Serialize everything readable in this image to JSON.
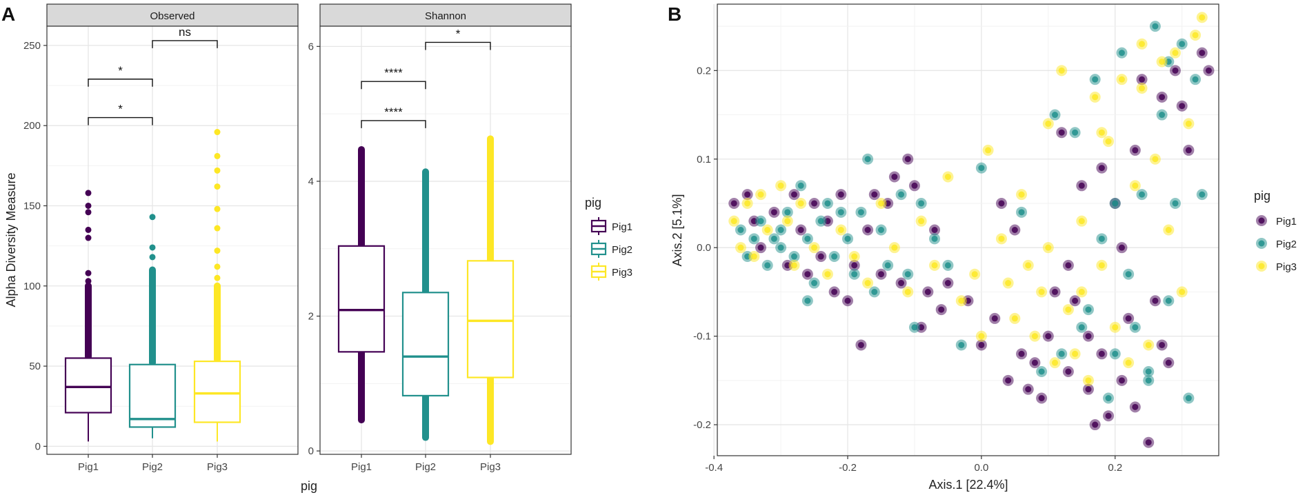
{
  "panel_a_label": "A",
  "panel_b_label": "B",
  "legend_title": "pig",
  "colors": {
    "Pig1": "#440154",
    "Pig2": "#21908C",
    "Pig3": "#FDE725"
  },
  "chart_data": [
    {
      "type": "box",
      "title": "Observed",
      "ylabel": "Alpha Diversity Measure",
      "xlabel": "pig",
      "categories": [
        "Pig1",
        "Pig2",
        "Pig3"
      ],
      "ylim": [
        -5,
        262
      ],
      "yticks": [
        0,
        50,
        100,
        150,
        200,
        250
      ],
      "boxes": [
        {
          "group": "Pig1",
          "q1": 21,
          "median": 37,
          "q3": 55,
          "whisker_low": 3,
          "whisker_high": 55,
          "outliers_dense": [
            56,
            100
          ],
          "outliers_sparse": [
            103,
            108,
            130,
            135,
            146,
            150,
            158
          ]
        },
        {
          "group": "Pig2",
          "q1": 12,
          "median": 17,
          "q3": 51,
          "whisker_low": 5,
          "whisker_high": 51,
          "outliers_dense": [
            52,
            110
          ],
          "outliers_sparse": [
            118,
            124,
            143
          ]
        },
        {
          "group": "Pig3",
          "q1": 15,
          "median": 33,
          "q3": 53,
          "whisker_low": 3,
          "whisker_high": 53,
          "outliers_dense": [
            54,
            100
          ],
          "outliers_sparse": [
            105,
            112,
            122,
            136,
            148,
            162,
            172,
            181,
            196
          ]
        }
      ],
      "comparisons": [
        {
          "from": "Pig1",
          "to": "Pig2",
          "y": 205,
          "label": "*"
        },
        {
          "from": "Pig1",
          "to": "Pig2",
          "y": 229,
          "label": "*"
        },
        {
          "from": "Pig2",
          "to": "Pig3",
          "y": 253,
          "label": "ns"
        }
      ]
    },
    {
      "type": "box",
      "title": "Shannon",
      "categories": [
        "Pig1",
        "Pig2",
        "Pig3"
      ],
      "ylim": [
        -0.05,
        6.3
      ],
      "yticks": [
        0,
        2,
        4,
        6
      ],
      "boxes": [
        {
          "group": "Pig1",
          "q1": 1.47,
          "median": 2.09,
          "q3": 3.04,
          "whisker_low": 0.46,
          "whisker_high": 4.47,
          "outliers_dense": [
            0.46,
            4.47
          ],
          "outliers_sparse": []
        },
        {
          "group": "Pig2",
          "q1": 0.82,
          "median": 1.4,
          "q3": 2.35,
          "whisker_low": 0.2,
          "whisker_high": 4.14,
          "outliers_dense": [
            0.2,
            4.14
          ],
          "outliers_sparse": []
        },
        {
          "group": "Pig3",
          "q1": 1.09,
          "median": 1.93,
          "q3": 2.82,
          "whisker_low": 0.14,
          "whisker_high": 4.63,
          "outliers_dense": [
            0.14,
            4.63
          ],
          "outliers_sparse": []
        }
      ],
      "comparisons": [
        {
          "from": "Pig1",
          "to": "Pig2",
          "y": 4.9,
          "label": "****"
        },
        {
          "from": "Pig1",
          "to": "Pig2",
          "y": 5.48,
          "label": "****"
        },
        {
          "from": "Pig2",
          "to": "Pig3",
          "y": 6.06,
          "label": "*"
        }
      ]
    },
    {
      "type": "scatter",
      "title": "",
      "xlabel": "Axis.1   [22.4%]",
      "ylabel": "Axis.2   [5.1%]",
      "xlim": [
        -0.395,
        0.355
      ],
      "ylim": [
        -0.235,
        0.275
      ],
      "xticks": [
        -0.4,
        -0.2,
        0.0,
        0.2
      ],
      "xtick_labels": [
        "-0.4",
        "-0.2",
        "0.0",
        "0.2"
      ],
      "yticks": [
        -0.2,
        -0.1,
        0.0,
        0.1,
        0.2
      ],
      "ytick_labels": [
        "-0.2",
        "-0.1",
        "0.0",
        "0.1",
        "0.2"
      ],
      "series": [
        {
          "name": "Pig1",
          "points": [
            [
              -0.37,
              0.05
            ],
            [
              -0.35,
              0.06
            ],
            [
              -0.34,
              0.03
            ],
            [
              -0.33,
              0.0
            ],
            [
              -0.31,
              0.04
            ],
            [
              -0.29,
              -0.02
            ],
            [
              -0.28,
              0.06
            ],
            [
              -0.27,
              0.02
            ],
            [
              -0.26,
              -0.03
            ],
            [
              -0.25,
              0.05
            ],
            [
              -0.24,
              -0.01
            ],
            [
              -0.23,
              0.03
            ],
            [
              -0.22,
              -0.05
            ],
            [
              -0.21,
              0.06
            ],
            [
              -0.2,
              -0.06
            ],
            [
              -0.19,
              -0.02
            ],
            [
              -0.18,
              -0.11
            ],
            [
              -0.17,
              0.02
            ],
            [
              -0.16,
              0.06
            ],
            [
              -0.15,
              -0.03
            ],
            [
              -0.14,
              0.05
            ],
            [
              -0.13,
              0.08
            ],
            [
              -0.12,
              -0.04
            ],
            [
              -0.11,
              0.1
            ],
            [
              -0.1,
              0.07
            ],
            [
              -0.09,
              -0.09
            ],
            [
              -0.08,
              -0.05
            ],
            [
              -0.07,
              0.02
            ],
            [
              -0.06,
              -0.07
            ],
            [
              -0.05,
              -0.04
            ],
            [
              -0.02,
              -0.06
            ],
            [
              0.0,
              -0.11
            ],
            [
              0.02,
              -0.08
            ],
            [
              0.03,
              0.05
            ],
            [
              0.04,
              -0.15
            ],
            [
              0.05,
              0.02
            ],
            [
              0.06,
              -0.12
            ],
            [
              0.07,
              -0.16
            ],
            [
              0.08,
              -0.13
            ],
            [
              0.09,
              -0.17
            ],
            [
              0.1,
              -0.1
            ],
            [
              0.11,
              -0.05
            ],
            [
              0.12,
              0.13
            ],
            [
              0.13,
              -0.14
            ],
            [
              0.14,
              -0.06
            ],
            [
              0.15,
              0.07
            ],
            [
              0.16,
              -0.16
            ],
            [
              0.17,
              -0.2
            ],
            [
              0.18,
              0.09
            ],
            [
              0.18,
              -0.12
            ],
            [
              0.19,
              -0.19
            ],
            [
              0.2,
              0.05
            ],
            [
              0.21,
              -0.15
            ],
            [
              0.22,
              -0.08
            ],
            [
              0.23,
              -0.18
            ],
            [
              0.24,
              0.19
            ],
            [
              0.25,
              -0.22
            ],
            [
              0.26,
              -0.06
            ],
            [
              0.27,
              0.17
            ],
            [
              0.28,
              -0.13
            ],
            [
              0.29,
              0.2
            ],
            [
              0.3,
              0.16
            ],
            [
              0.31,
              0.11
            ],
            [
              0.33,
              0.22
            ],
            [
              0.34,
              0.2
            ],
            [
              0.23,
              0.11
            ],
            [
              0.21,
              0.0
            ],
            [
              0.16,
              -0.1
            ],
            [
              0.13,
              -0.02
            ],
            [
              0.27,
              -0.11
            ]
          ]
        },
        {
          "name": "Pig2",
          "points": [
            [
              -0.36,
              0.02
            ],
            [
              -0.35,
              -0.01
            ],
            [
              -0.34,
              0.01
            ],
            [
              -0.33,
              0.03
            ],
            [
              -0.32,
              -0.02
            ],
            [
              -0.31,
              0.01
            ],
            [
              -0.3,
              0.0
            ],
            [
              -0.3,
              0.02
            ],
            [
              -0.29,
              0.04
            ],
            [
              -0.28,
              -0.01
            ],
            [
              -0.27,
              0.07
            ],
            [
              -0.26,
              0.01
            ],
            [
              -0.25,
              -0.04
            ],
            [
              -0.24,
              0.03
            ],
            [
              -0.23,
              0.05
            ],
            [
              -0.22,
              -0.01
            ],
            [
              -0.21,
              0.04
            ],
            [
              -0.2,
              0.01
            ],
            [
              -0.19,
              -0.03
            ],
            [
              -0.18,
              0.04
            ],
            [
              -0.17,
              0.1
            ],
            [
              -0.16,
              -0.05
            ],
            [
              -0.15,
              0.02
            ],
            [
              -0.14,
              -0.02
            ],
            [
              -0.12,
              0.06
            ],
            [
              -0.11,
              -0.03
            ],
            [
              -0.1,
              -0.09
            ],
            [
              -0.09,
              0.05
            ],
            [
              -0.05,
              -0.02
            ],
            [
              -0.03,
              -0.11
            ],
            [
              0.0,
              0.09
            ],
            [
              0.06,
              0.04
            ],
            [
              0.09,
              -0.14
            ],
            [
              0.11,
              0.15
            ],
            [
              0.14,
              0.13
            ],
            [
              0.16,
              -0.07
            ],
            [
              0.17,
              0.19
            ],
            [
              0.19,
              -0.17
            ],
            [
              0.2,
              0.05
            ],
            [
              0.21,
              0.22
            ],
            [
              0.22,
              -0.03
            ],
            [
              0.23,
              -0.09
            ],
            [
              0.24,
              0.06
            ],
            [
              0.25,
              -0.14
            ],
            [
              0.26,
              0.25
            ],
            [
              0.27,
              0.15
            ],
            [
              0.28,
              0.21
            ],
            [
              0.29,
              0.05
            ],
            [
              0.3,
              0.23
            ],
            [
              0.31,
              -0.17
            ],
            [
              0.32,
              0.19
            ],
            [
              0.33,
              0.06
            ],
            [
              0.18,
              0.01
            ],
            [
              0.15,
              -0.09
            ],
            [
              0.12,
              -0.12
            ],
            [
              0.25,
              -0.15
            ],
            [
              0.28,
              -0.06
            ],
            [
              0.2,
              -0.12
            ],
            [
              -0.07,
              0.01
            ],
            [
              -0.26,
              -0.06
            ]
          ]
        },
        {
          "name": "Pig3",
          "points": [
            [
              -0.37,
              0.03
            ],
            [
              -0.36,
              0.0
            ],
            [
              -0.35,
              0.05
            ],
            [
              -0.34,
              -0.01
            ],
            [
              -0.33,
              0.06
            ],
            [
              -0.32,
              0.02
            ],
            [
              -0.3,
              0.07
            ],
            [
              -0.29,
              0.03
            ],
            [
              -0.28,
              -0.02
            ],
            [
              -0.27,
              0.05
            ],
            [
              -0.25,
              0.0
            ],
            [
              -0.23,
              -0.03
            ],
            [
              -0.21,
              0.02
            ],
            [
              -0.19,
              -0.01
            ],
            [
              -0.17,
              -0.04
            ],
            [
              -0.15,
              0.05
            ],
            [
              -0.13,
              0.0
            ],
            [
              -0.11,
              -0.05
            ],
            [
              -0.09,
              0.03
            ],
            [
              -0.07,
              -0.02
            ],
            [
              -0.05,
              0.08
            ],
            [
              -0.03,
              -0.06
            ],
            [
              0.0,
              -0.1
            ],
            [
              0.01,
              0.11
            ],
            [
              0.03,
              0.01
            ],
            [
              0.04,
              -0.04
            ],
            [
              0.05,
              -0.08
            ],
            [
              0.06,
              0.06
            ],
            [
              0.07,
              -0.02
            ],
            [
              0.08,
              -0.1
            ],
            [
              0.09,
              -0.05
            ],
            [
              0.1,
              0.14
            ],
            [
              0.11,
              -0.13
            ],
            [
              0.12,
              0.2
            ],
            [
              0.13,
              -0.07
            ],
            [
              0.14,
              -0.12
            ],
            [
              0.15,
              0.03
            ],
            [
              0.16,
              -0.15
            ],
            [
              0.17,
              0.17
            ],
            [
              0.18,
              -0.02
            ],
            [
              0.19,
              0.12
            ],
            [
              0.2,
              -0.09
            ],
            [
              0.21,
              0.19
            ],
            [
              0.22,
              -0.13
            ],
            [
              0.23,
              0.07
            ],
            [
              0.24,
              0.18
            ],
            [
              0.25,
              -0.11
            ],
            [
              0.26,
              0.1
            ],
            [
              0.27,
              0.21
            ],
            [
              0.28,
              0.02
            ],
            [
              0.29,
              0.22
            ],
            [
              0.3,
              -0.05
            ],
            [
              0.31,
              0.14
            ],
            [
              0.32,
              0.24
            ],
            [
              0.33,
              0.26
            ],
            [
              0.24,
              0.23
            ],
            [
              0.18,
              0.13
            ],
            [
              0.15,
              -0.05
            ],
            [
              0.1,
              0.0
            ],
            [
              -0.01,
              -0.03
            ]
          ]
        }
      ]
    }
  ]
}
